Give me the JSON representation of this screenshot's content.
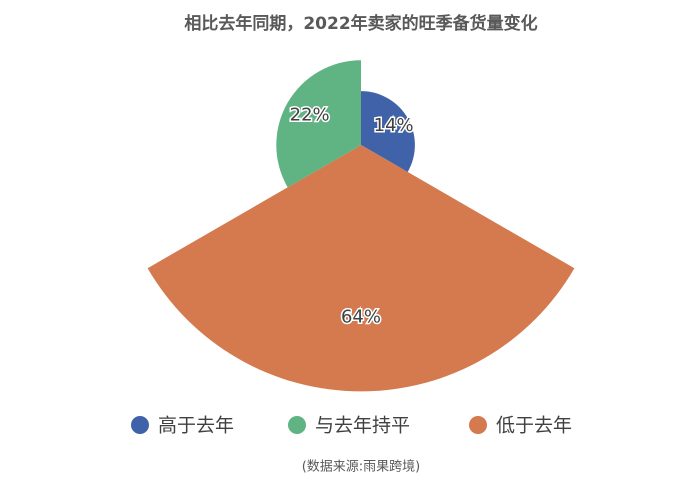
{
  "chart_data": {
    "type": "rose",
    "title": "相比去年同期，2022年卖家的旺季备货量变化",
    "categories": [
      "高于去年",
      "低于去年",
      "与去年持平"
    ],
    "values": [
      14,
      64,
      22
    ],
    "value_labels": [
      "14%",
      "64%",
      "22%"
    ],
    "colors": [
      "#4062a8",
      "#d47a4e",
      "#60b383"
    ],
    "legend_order": [
      0,
      2,
      1
    ],
    "source": "(数据来源:雨果跨境)"
  }
}
